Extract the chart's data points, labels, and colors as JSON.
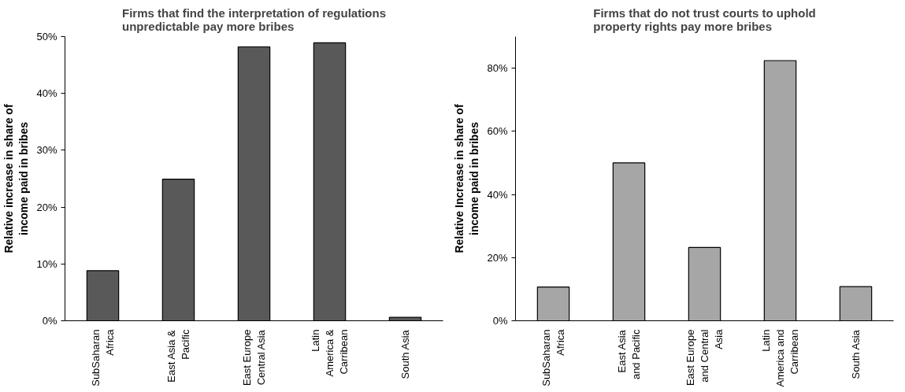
{
  "chart_data": [
    {
      "type": "bar",
      "title": "Firms that find the interpretation of regulations\nunpredictable pay more bribes",
      "ylabel": "Relative increase in share of\nincome paid in bribes",
      "categories": [
        "SubSaharan\nAfrica",
        "East Asia &\nPacific",
        "East Europe\nCentral Asia",
        "Latin\nAmerica &\nCarribean",
        "South Asia"
      ],
      "values": [
        8.8,
        24.9,
        48.2,
        48.9,
        0.6
      ],
      "color": "#595959",
      "ylim": [
        0,
        50
      ],
      "yticks": [
        {
          "value": 0,
          "label": "0%"
        },
        {
          "value": 10,
          "label": "10%"
        },
        {
          "value": 20,
          "label": "20%"
        },
        {
          "value": 30,
          "label": "30%"
        },
        {
          "value": 40,
          "label": "40%"
        },
        {
          "value": 50,
          "label": "50%"
        }
      ],
      "grid": false
    },
    {
      "type": "bar",
      "title": "Firms that do not trust courts to uphold\nproperty rights pay more bribes",
      "ylabel": "Relative Increase in share of\nincome paid in bribes",
      "categories": [
        "SubSaharan\nAfrica",
        "East Asia\nand Pacific",
        "East Europe\nand Central\nAsia",
        "Latin\nAmerica and\nCarribean",
        "South Asia"
      ],
      "values": [
        10.7,
        50.0,
        23.2,
        82.4,
        10.8
      ],
      "color": "#a6a6a6",
      "ylim": [
        0,
        90
      ],
      "yticks": [
        {
          "value": 0,
          "label": "0%"
        },
        {
          "value": 20,
          "label": "20%"
        },
        {
          "value": 40,
          "label": "40%"
        },
        {
          "value": 60,
          "label": "60%"
        },
        {
          "value": 80,
          "label": "80%"
        }
      ],
      "grid": false
    }
  ]
}
